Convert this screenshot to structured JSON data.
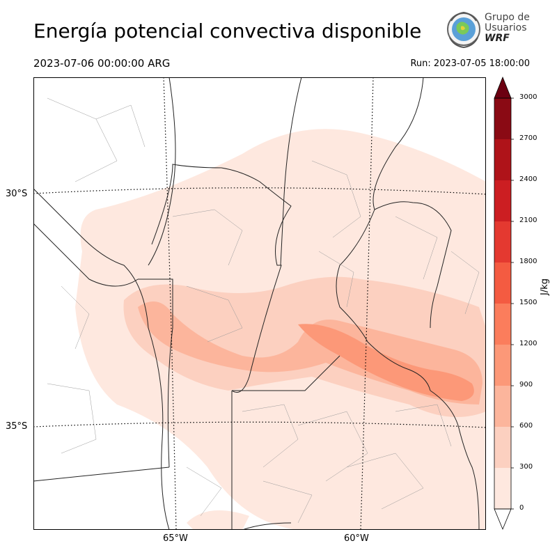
{
  "header": {
    "title": "Energía potencial convectiva disponible",
    "valid_time": "2023-07-06 00:00:00 ARG",
    "run_time": "Run: 2023-07-05 18:00:00"
  },
  "logo": {
    "line1": "Grupo de",
    "line2": "Usuarios",
    "line3": "WRF"
  },
  "map": {
    "lat_labels": [
      "30°S",
      "35°S"
    ],
    "lon_labels": [
      "65°W",
      "60°W"
    ]
  },
  "colorbar": {
    "unit": "J/kg",
    "ticks": [
      "0",
      "300",
      "600",
      "900",
      "1200",
      "1500",
      "1800",
      "2100",
      "2400",
      "2700",
      "3000"
    ],
    "levels": [
      0,
      300,
      600,
      900,
      1200,
      1500,
      1800,
      2100,
      2400,
      2700,
      3000
    ],
    "colors": [
      "#fee8df",
      "#fcd0c0",
      "#fcb59c",
      "#fc9878",
      "#fb7d5c",
      "#f45b41",
      "#e43930",
      "#cc1e22",
      "#af1319",
      "#8a0a14",
      "#6c0011"
    ],
    "extend": "max"
  }
}
